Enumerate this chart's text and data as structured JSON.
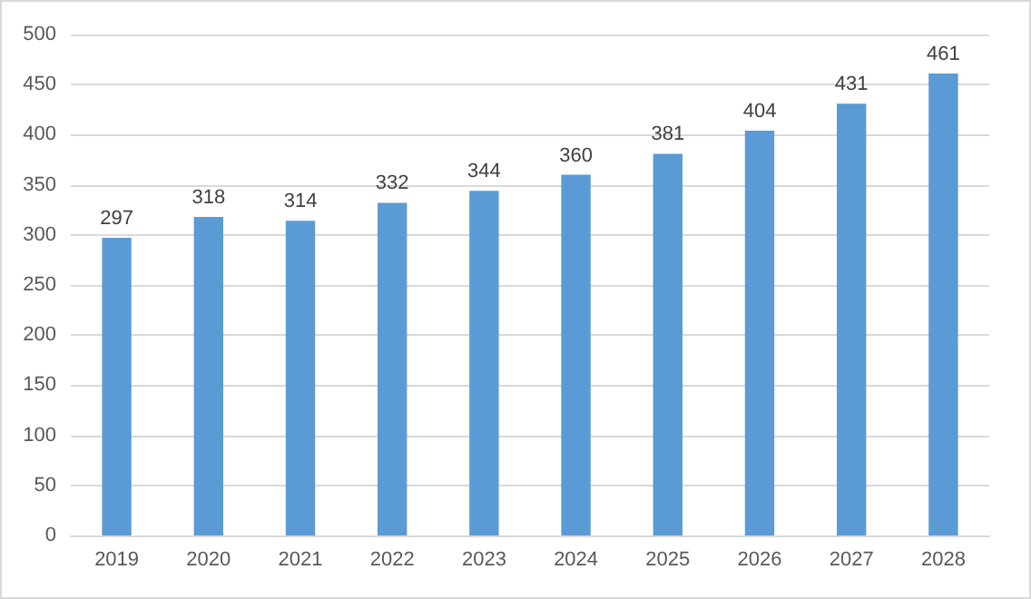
{
  "chart_data": {
    "type": "bar",
    "categories": [
      "2019",
      "2020",
      "2021",
      "2022",
      "2023",
      "2024",
      "2025",
      "2026",
      "2027",
      "2028"
    ],
    "values": [
      297,
      318,
      314,
      332,
      344,
      360,
      381,
      404,
      431,
      461
    ],
    "color": "#5b9bd5",
    "ylim": [
      0,
      500
    ],
    "yticks": [
      0,
      50,
      100,
      150,
      200,
      250,
      300,
      350,
      400,
      450,
      500
    ],
    "grid": "y",
    "data_labels": true
  }
}
